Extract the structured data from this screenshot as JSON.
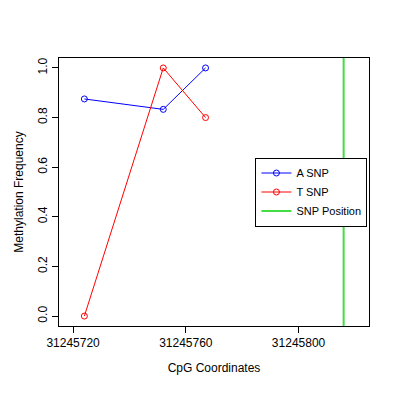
{
  "chart_data": {
    "type": "line",
    "x_label": "CpG Coordinates",
    "y_label": "Methylation Frequency",
    "series": [
      {
        "name": "A SNP",
        "color": "#0000ff",
        "marker": "circle-open",
        "line_style": "solid",
        "x": [
          31245724,
          31245752,
          31245767
        ],
        "values": [
          0.875,
          0.833,
          1.0
        ]
      },
      {
        "name": "T SNP",
        "color": "#ff0000",
        "marker": "circle-open",
        "line_style": "solid",
        "x": [
          31245724,
          31245752,
          31245767
        ],
        "values": [
          0,
          1.0,
          0.8
        ]
      }
    ],
    "snp_position": {
      "name": "SNP Position",
      "color": "#44dd44",
      "x": 31245816
    },
    "xlim": [
      31245715,
      31245825
    ],
    "xticks": [
      31245720,
      31245760,
      31245800
    ],
    "ylim": [
      -0.04,
      1.04
    ],
    "yticks": [
      {
        "value": 0,
        "label": "0.0"
      },
      0.2,
      0.4,
      0.6,
      0.8,
      {
        "value": 1,
        "label": "1.0"
      }
    ],
    "legend": "right",
    "grid": false
  }
}
